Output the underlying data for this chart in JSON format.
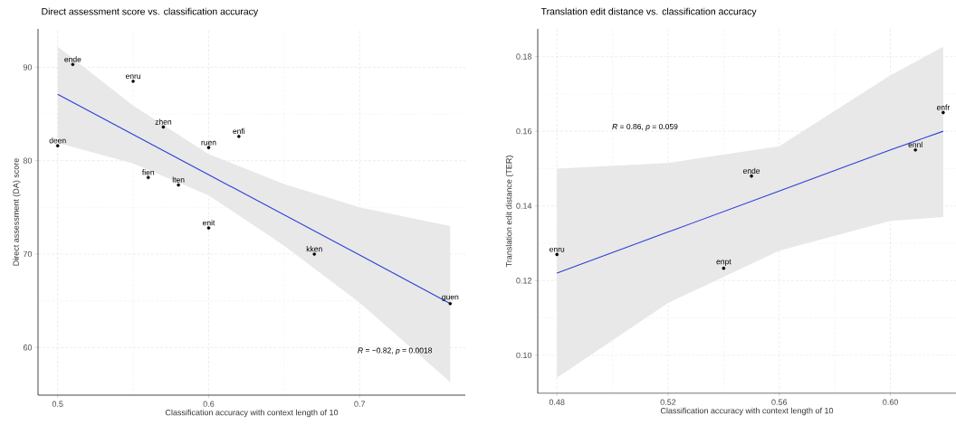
{
  "chart_data": [
    {
      "type": "scatter",
      "title": "Direct assessment score vs. classification accuracy",
      "xlabel": "Classification accuracy with context length of 10",
      "ylabel": "Direct assessment (DA) score",
      "xlim": [
        0.487,
        0.77
      ],
      "ylim": [
        54.9,
        94.1
      ],
      "xticks": [
        0.5,
        0.6,
        0.7
      ],
      "yticks": [
        60,
        70,
        80,
        90
      ],
      "grid": true,
      "series": [
        {
          "type": "line",
          "color": "#2b3fd6",
          "x": [
            0.5,
            0.55,
            0.6,
            0.65,
            0.7,
            0.76
          ],
          "values": [
            87.1,
            82.8,
            78.5,
            74.2,
            69.9,
            64.7
          ],
          "lower": [
            81.9,
            79.7,
            76.3,
            70.9,
            64.8,
            56.3
          ],
          "upper": [
            92.2,
            85.9,
            80.7,
            77.5,
            75.0,
            73.0
          ]
        },
        {
          "marker": "circle",
          "color": "#000000",
          "x": [
            0.51,
            0.55,
            0.57,
            0.62,
            0.5,
            0.6,
            0.56,
            0.58,
            0.6,
            0.67,
            0.76
          ],
          "values": [
            90.3,
            88.5,
            83.6,
            82.6,
            81.6,
            81.4,
            78.2,
            77.4,
            72.8,
            70.0,
            64.7
          ]
        }
      ],
      "annotations": [
        {
          "text": "ende",
          "x": 0.51,
          "y": 90.3
        },
        {
          "text": "enru",
          "x": 0.55,
          "y": 88.5
        },
        {
          "text": "zhen",
          "x": 0.57,
          "y": 83.6
        },
        {
          "text": "enfi",
          "x": 0.62,
          "y": 82.6
        },
        {
          "text": "deen",
          "x": 0.5,
          "y": 81.6
        },
        {
          "text": "ruen",
          "x": 0.6,
          "y": 81.4
        },
        {
          "text": "fien",
          "x": 0.56,
          "y": 78.2
        },
        {
          "text": "lten",
          "x": 0.58,
          "y": 77.4
        },
        {
          "text": "enit",
          "x": 0.6,
          "y": 72.8
        },
        {
          "text": "kken",
          "x": 0.67,
          "y": 70.0
        },
        {
          "text": "guen",
          "x": 0.76,
          "y": 64.7
        },
        "*R* = −0.82, *p* = 0.0018"
      ]
    },
    {
      "type": "scatter",
      "title": "Translation edit distance vs. classification accuracy",
      "xlabel": "Classification accuracy with context length of 10",
      "ylabel": "Translation edit distance (TER)",
      "xlim": [
        0.4731,
        0.6236
      ],
      "ylim": [
        0.0898,
        0.1874
      ],
      "xticks": [
        0.48,
        0.52,
        0.56,
        {
          "value": 0.6,
          "label": "0.60"
        }
      ],
      "yticks": [
        {
          "value": 0.1,
          "label": "0.10"
        },
        0.12,
        0.14,
        0.16,
        0.18
      ],
      "grid": true,
      "series": [
        {
          "type": "line",
          "color": "#2b3fd6",
          "x": [
            0.48,
            0.52,
            0.56,
            0.6,
            0.619
          ],
          "values": [
            0.122,
            0.133,
            0.144,
            0.155,
            0.16
          ],
          "lower": [
            0.094,
            0.114,
            0.128,
            0.136,
            0.137
          ],
          "upper": [
            0.15,
            0.1515,
            0.156,
            0.175,
            0.1826
          ]
        },
        {
          "marker": "circle",
          "color": "#000000",
          "x": [
            0.48,
            0.54,
            0.55,
            0.609,
            0.619
          ],
          "values": [
            0.127,
            0.1233,
            0.148,
            0.155,
            0.165
          ]
        }
      ],
      "annotations": [
        {
          "text": "enru",
          "x": 0.48,
          "y": 0.127
        },
        {
          "text": "enpt",
          "x": 0.54,
          "y": 0.1233
        },
        {
          "text": "ende",
          "x": 0.55,
          "y": 0.148
        },
        {
          "text": "ennl",
          "x": 0.609,
          "y": 0.155
        },
        {
          "text": "enfr",
          "x": 0.619,
          "y": 0.165
        },
        "*R* = 0.86, *p* = 0.059"
      ]
    }
  ]
}
